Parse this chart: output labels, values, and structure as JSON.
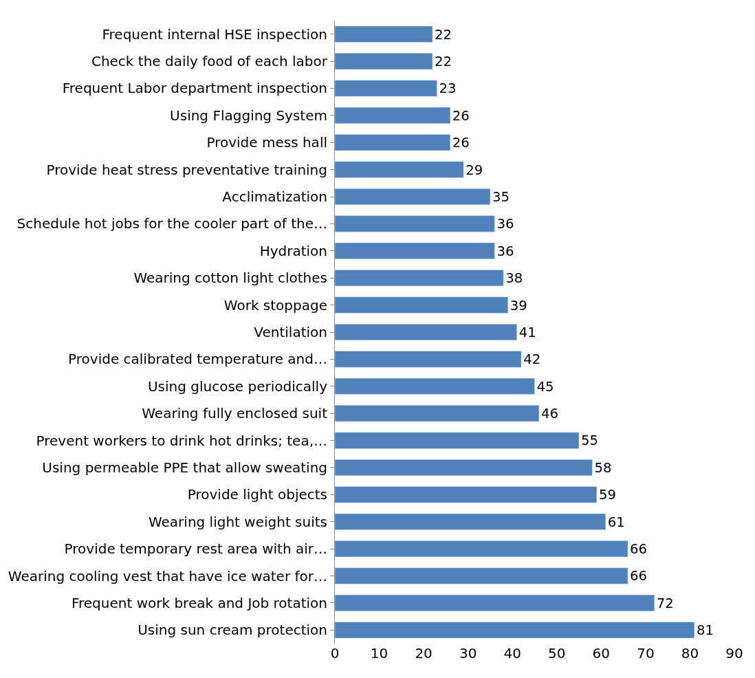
{
  "chart_data": {
    "type": "bar",
    "orientation": "horizontal",
    "categories": [
      "Frequent internal HSE inspection",
      "Check the daily food of each labor",
      "Frequent Labor department inspection",
      "Using Flagging System",
      "Provide mess hall",
      "Provide heat stress preventative training",
      "Acclimatization",
      "Schedule hot jobs for the cooler part of the…",
      "Hydration",
      "Wearing cotton light clothes",
      "Work stoppage",
      "Ventilation",
      "Provide calibrated temperature and…",
      "Using glucose periodically",
      "Wearing fully enclosed suit",
      "Prevent workers to drink hot drinks; tea,…",
      "Using permeable PPE that allow sweating",
      "Provide light objects",
      "Wearing light weight suits",
      "Provide temporary rest area with air…",
      "Wearing cooling vest that have ice water for…",
      "Frequent work break and Job rotation",
      "Using sun cream protection"
    ],
    "values": [
      22,
      22,
      23,
      26,
      26,
      29,
      35,
      36,
      36,
      38,
      39,
      41,
      42,
      45,
      46,
      55,
      58,
      59,
      61,
      66,
      66,
      72,
      81
    ],
    "color": "#4f81bd",
    "xlim": [
      0,
      90
    ],
    "xticks": [
      0,
      10,
      20,
      30,
      40,
      50,
      60,
      70,
      80,
      90
    ],
    "data_labels": true
  }
}
